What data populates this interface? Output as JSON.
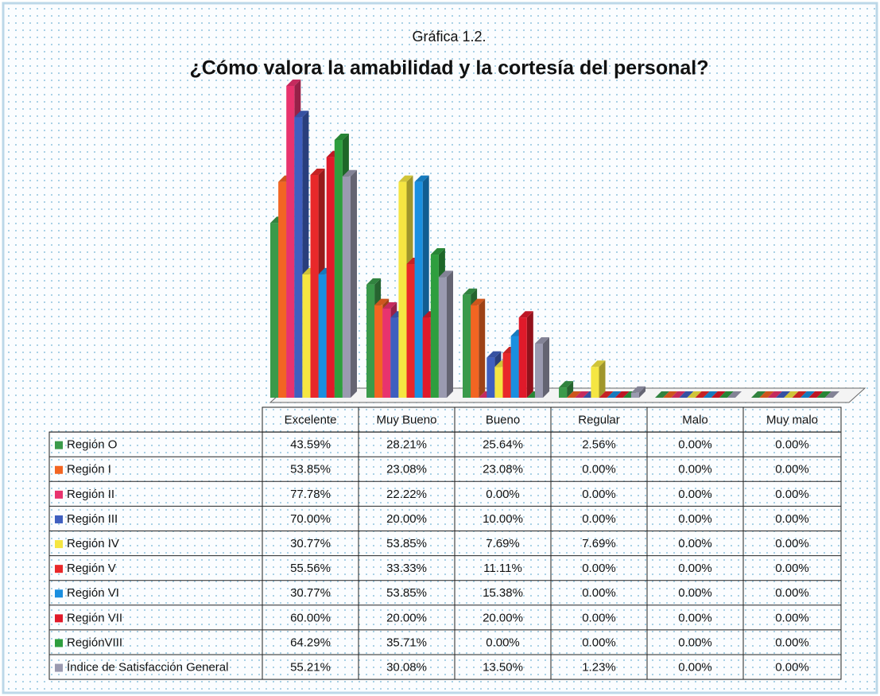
{
  "chart_data": {
    "type": "bar",
    "title": "Gráfica 1.2.",
    "subtitle": "¿Cómo valora la amabilidad y la cortesía del personal?",
    "categories": [
      "Excelente",
      "Muy Bueno",
      "Bueno",
      "Regular",
      "Malo",
      "Muy malo"
    ],
    "series": [
      {
        "name": "Región O",
        "color": "#3a9a4a",
        "values": [
          43.59,
          28.21,
          25.64,
          2.56,
          0,
          0
        ],
        "value_labels": [
          "43.59%",
          "28.21%",
          "25.64%",
          "2.56%",
          "0.00%",
          "0.00%"
        ]
      },
      {
        "name": "Región I",
        "color": "#f26522",
        "values": [
          53.85,
          23.08,
          23.08,
          0,
          0,
          0
        ],
        "value_labels": [
          "53.85%",
          "23.08%",
          "23.08%",
          "0.00%",
          "0.00%",
          "0.00%"
        ]
      },
      {
        "name": "Región II",
        "color": "#e8336e",
        "values": [
          77.78,
          22.22,
          0,
          0,
          0,
          0
        ],
        "value_labels": [
          "77.78%",
          "22.22%",
          "0.00%",
          "0.00%",
          "0.00%",
          "0.00%"
        ]
      },
      {
        "name": "Región III",
        "color": "#3f5fbf",
        "values": [
          70,
          20,
          10,
          0,
          0,
          0
        ],
        "value_labels": [
          "70.00%",
          "20.00%",
          "10.00%",
          "0.00%",
          "0.00%",
          "0.00%"
        ]
      },
      {
        "name": "Región IV",
        "color": "#f5e642",
        "values": [
          30.77,
          53.85,
          7.69,
          7.69,
          0,
          0
        ],
        "value_labels": [
          "30.77%",
          "53.85%",
          "7.69%",
          "7.69%",
          "0.00%",
          "0.00%"
        ]
      },
      {
        "name": "Región V",
        "color": "#e8282a",
        "values": [
          55.56,
          33.33,
          11.11,
          0,
          0,
          0
        ],
        "value_labels": [
          "55.56%",
          "33.33%",
          "11.11%",
          "0.00%",
          "0.00%",
          "0.00%"
        ]
      },
      {
        "name": "Región VI",
        "color": "#1a8fe0",
        "values": [
          30.77,
          53.85,
          15.38,
          0,
          0,
          0
        ],
        "value_labels": [
          "30.77%",
          "53.85%",
          "15.38%",
          "0.00%",
          "0.00%",
          "0.00%"
        ]
      },
      {
        "name": "Región VII",
        "color": "#e01a2a",
        "values": [
          60,
          20,
          20,
          0,
          0,
          0
        ],
        "value_labels": [
          "60.00%",
          "20.00%",
          "20.00%",
          "0.00%",
          "0.00%",
          "0.00%"
        ]
      },
      {
        "name": "RegiónVIII",
        "color": "#2e9e3e",
        "values": [
          64.29,
          35.71,
          0,
          0,
          0,
          0
        ],
        "value_labels": [
          "64.29%",
          "35.71%",
          "0.00%",
          "0.00%",
          "0.00%",
          "0.00%"
        ]
      },
      {
        "name": "Índice de Satisfacción General",
        "color": "#9a9ab0",
        "values": [
          55.21,
          30.08,
          13.5,
          1.23,
          0,
          0
        ],
        "value_labels": [
          "55.21%",
          "30.08%",
          "13.50%",
          "1.23%",
          "0.00%",
          "0.00%"
        ]
      }
    ]
  }
}
